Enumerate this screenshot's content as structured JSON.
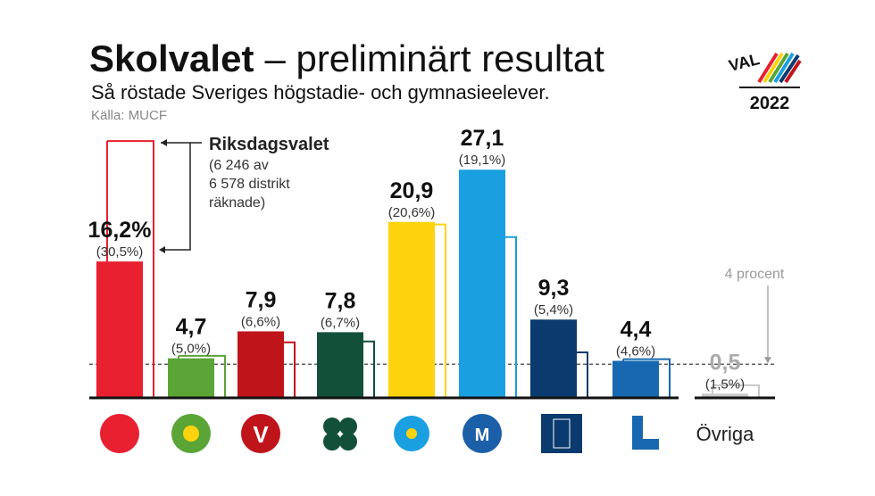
{
  "chart_data": {
    "type": "bar",
    "title": [
      "Skolvalet",
      "– preliminärt resultat"
    ],
    "subtitle": "Så röstade Sveriges högstadie- och gymnasieelever.",
    "source": "Källa: MUCF",
    "badge": [
      "VAL",
      "2022"
    ],
    "categories": [
      null,
      null,
      null,
      null,
      null,
      null,
      null,
      null,
      "Övriga"
    ],
    "series": [
      {
        "colors": [
          "#e8202f",
          "#5aa536",
          "#c0141b",
          "#12503a",
          "#fcd30c",
          "#1a9fe0",
          "#0a3a6e",
          "#1768b0",
          "#c8c8c8"
        ],
        "values": [
          16.2,
          4.7,
          7.9,
          7.8,
          20.9,
          27.1,
          9.3,
          4.4,
          0.5
        ],
        "value_labels": [
          "16,2%",
          "4,7",
          "7,9",
          "7,8",
          "20,9",
          "27,1",
          "9,3",
          "4,4",
          "0,5"
        ]
      },
      {
        "name": "Riksdagsvalet",
        "colors": [
          "#e8202f",
          "#5aa536",
          "#c0141b",
          "#12503a",
          "#fcd30c",
          "#1a9fe0",
          "#0a3a6e",
          "#1768b0",
          "#c8c8c8"
        ],
        "values": [
          30.5,
          5.0,
          6.6,
          6.7,
          20.6,
          19.1,
          5.4,
          4.6,
          1.5
        ],
        "value_labels": [
          "(30,5%)",
          "(5,0%)",
          "(6,6%)",
          "(6,7%)",
          "(20,6%)",
          "(19,1%)",
          "(5,4%)",
          "(4,6%)",
          "(1,5%)"
        ]
      }
    ],
    "riksdag_note": [
      "(6 246 av",
      "6 578 distrikt",
      "räknade)"
    ],
    "threshold": {
      "value": 4,
      "label": "4 procent"
    },
    "ylim": [
      0,
      32
    ]
  }
}
